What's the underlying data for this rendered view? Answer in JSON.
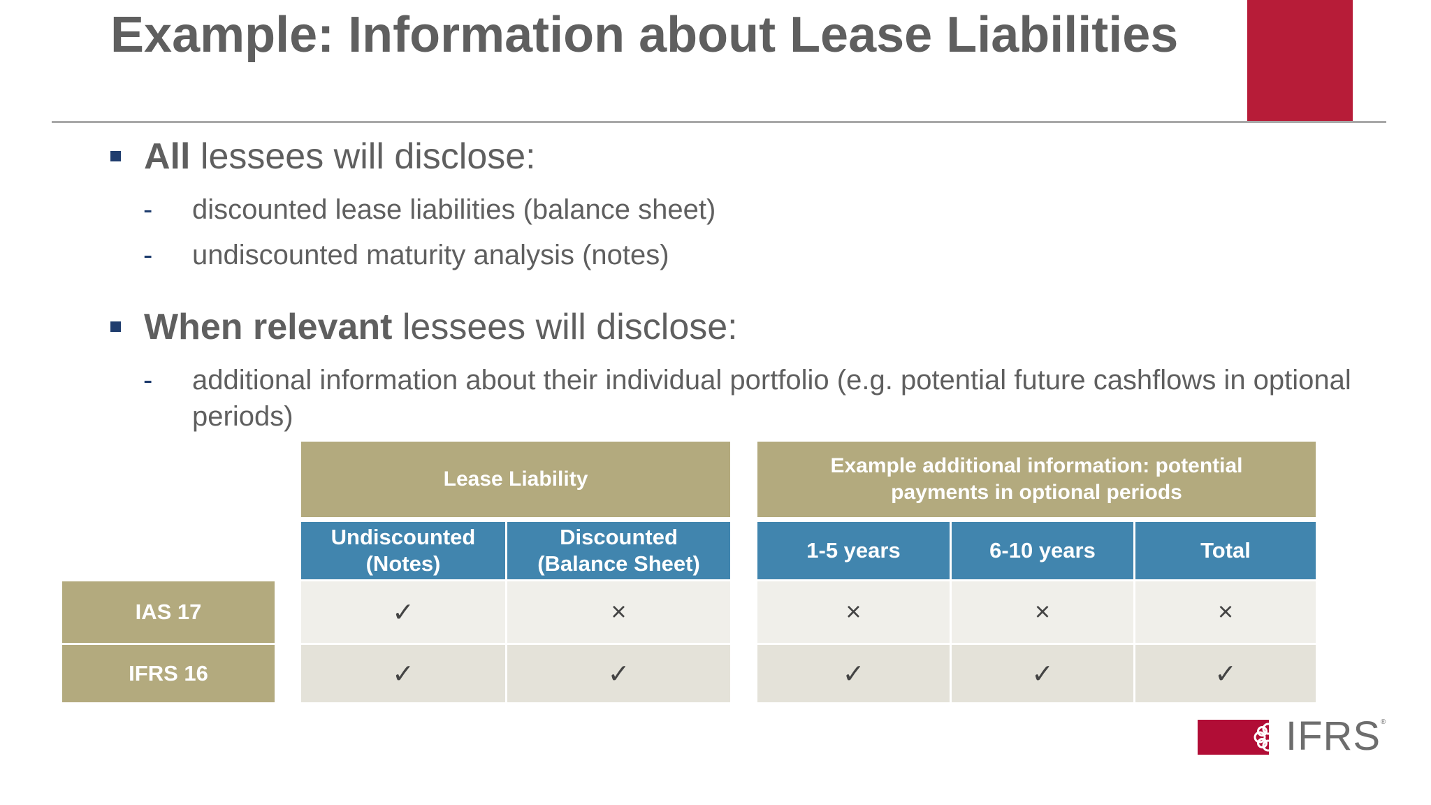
{
  "title": "Example: Information about Lease Liabilities",
  "bullets": [
    {
      "bold": "All",
      "rest": " lessees will disclose:",
      "subs": [
        {
          "dash": "-",
          "text": "discounted lease liabilities (balance sheet)"
        },
        {
          "dash": "-",
          "text": "undiscounted maturity analysis (notes)"
        }
      ]
    },
    {
      "bold": "When relevant",
      "rest": " lessees will disclose:",
      "subs": [
        {
          "dash": "-",
          "text": "additional information about their individual portfolio (e.g. potential future cashflows in optional periods)"
        }
      ]
    }
  ],
  "table": {
    "group_headers": [
      "Lease Liability",
      "Example additional information: potential payments in optional periods"
    ],
    "columns": [
      "Undiscounted (Notes)",
      "Discounted (Balance Sheet)",
      "1-5 years",
      "6-10 years",
      "Total"
    ],
    "rows": [
      {
        "label": "IAS 17",
        "cells": [
          "✓",
          "×",
          "×",
          "×",
          "×"
        ]
      },
      {
        "label": "IFRS 16",
        "cells": [
          "✓",
          "✓",
          "✓",
          "✓",
          "✓"
        ]
      }
    ]
  },
  "logo": {
    "text": "IFRS",
    "reg": "®"
  },
  "colors": {
    "accent_red": "#b71c38",
    "olive": "#b3aa7e",
    "header_blue": "#4185ae",
    "bullet_navy": "#1f3d6e",
    "text_grey": "#5f5f5f"
  },
  "icons": {
    "check": "check-icon",
    "cross": "cross-icon",
    "bullet": "square-bullet-icon",
    "logo_mark": "ifrs-flower-icon"
  }
}
